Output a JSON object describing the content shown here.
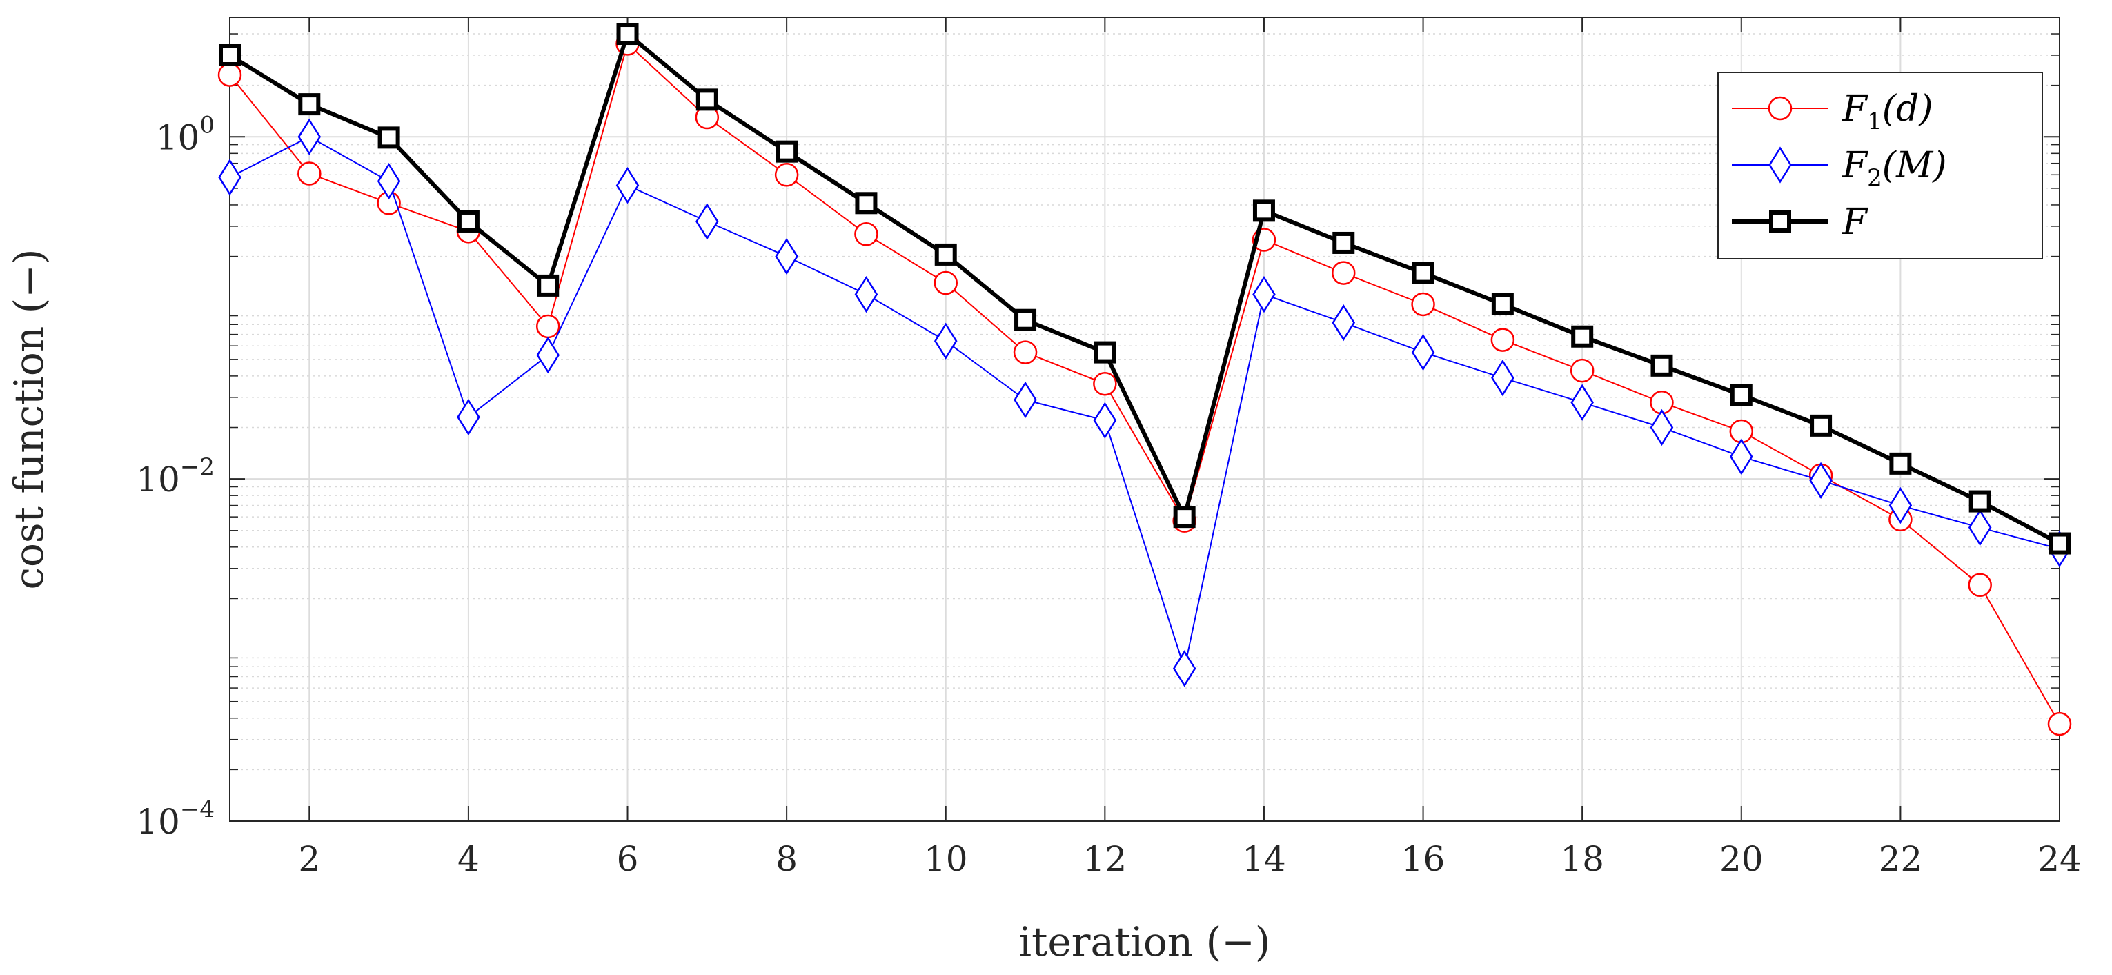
{
  "chart_data": {
    "type": "line",
    "title": "",
    "xlabel": "iteration (−)",
    "ylabel": "cost function (−)",
    "yscale": "log",
    "xlim": [
      1,
      24
    ],
    "ylim": [
      0.0001,
      5
    ],
    "grid": true,
    "minor_grid": true,
    "legend_position": "top-right",
    "x_ticks": [
      2,
      4,
      6,
      8,
      10,
      12,
      14,
      16,
      18,
      20,
      22,
      24
    ],
    "x_tick_labels": [
      "2",
      "4",
      "6",
      "8",
      "10",
      "12",
      "14",
      "16",
      "18",
      "20",
      "22",
      "24"
    ],
    "y_ticks": [
      {
        "value": 1,
        "base": "10",
        "exponent": "0"
      },
      {
        "value": 0.01,
        "base": "10",
        "exponent": "−2"
      },
      {
        "value": 0.0001,
        "base": "10",
        "exponent": "−4"
      }
    ],
    "x": [
      1,
      2,
      3,
      4,
      5,
      6,
      7,
      8,
      9,
      10,
      11,
      12,
      13,
      14,
      15,
      16,
      17,
      18,
      19,
      20,
      21,
      22,
      23,
      24
    ],
    "series": [
      {
        "name": "F1(d)",
        "legend_main": "F",
        "legend_sub": "1",
        "legend_tail": "(d)",
        "color": "#ff0000",
        "marker": "circle",
        "line_width": 2,
        "values": [
          2.3,
          0.61,
          0.41,
          0.28,
          0.078,
          3.5,
          1.3,
          0.6,
          0.27,
          0.14,
          0.055,
          0.036,
          0.0057,
          0.25,
          0.16,
          0.105,
          0.065,
          0.043,
          0.028,
          0.019,
          0.0105,
          0.0058,
          0.0024,
          0.00037
        ]
      },
      {
        "name": "F2(M)",
        "legend_main": "F",
        "legend_sub": "2",
        "legend_tail": "(M)",
        "color": "#0000ff",
        "marker": "diamond",
        "line_width": 2,
        "values": [
          0.58,
          1.0,
          0.55,
          0.023,
          0.053,
          0.52,
          0.32,
          0.2,
          0.12,
          0.064,
          0.029,
          0.022,
          0.00078,
          0.12,
          0.082,
          0.055,
          0.039,
          0.028,
          0.02,
          0.0135,
          0.0098,
          0.007,
          0.0052,
          0.0039
        ]
      },
      {
        "name": "F",
        "legend_main": "F",
        "legend_sub": "",
        "legend_tail": "",
        "color": "#000000",
        "marker": "square",
        "line_width": 6,
        "values": [
          3.0,
          1.55,
          0.99,
          0.32,
          0.135,
          4.0,
          1.65,
          0.82,
          0.41,
          0.205,
          0.085,
          0.055,
          0.006,
          0.37,
          0.24,
          0.16,
          0.105,
          0.068,
          0.046,
          0.031,
          0.0205,
          0.0123,
          0.0074,
          0.0042
        ]
      }
    ]
  }
}
